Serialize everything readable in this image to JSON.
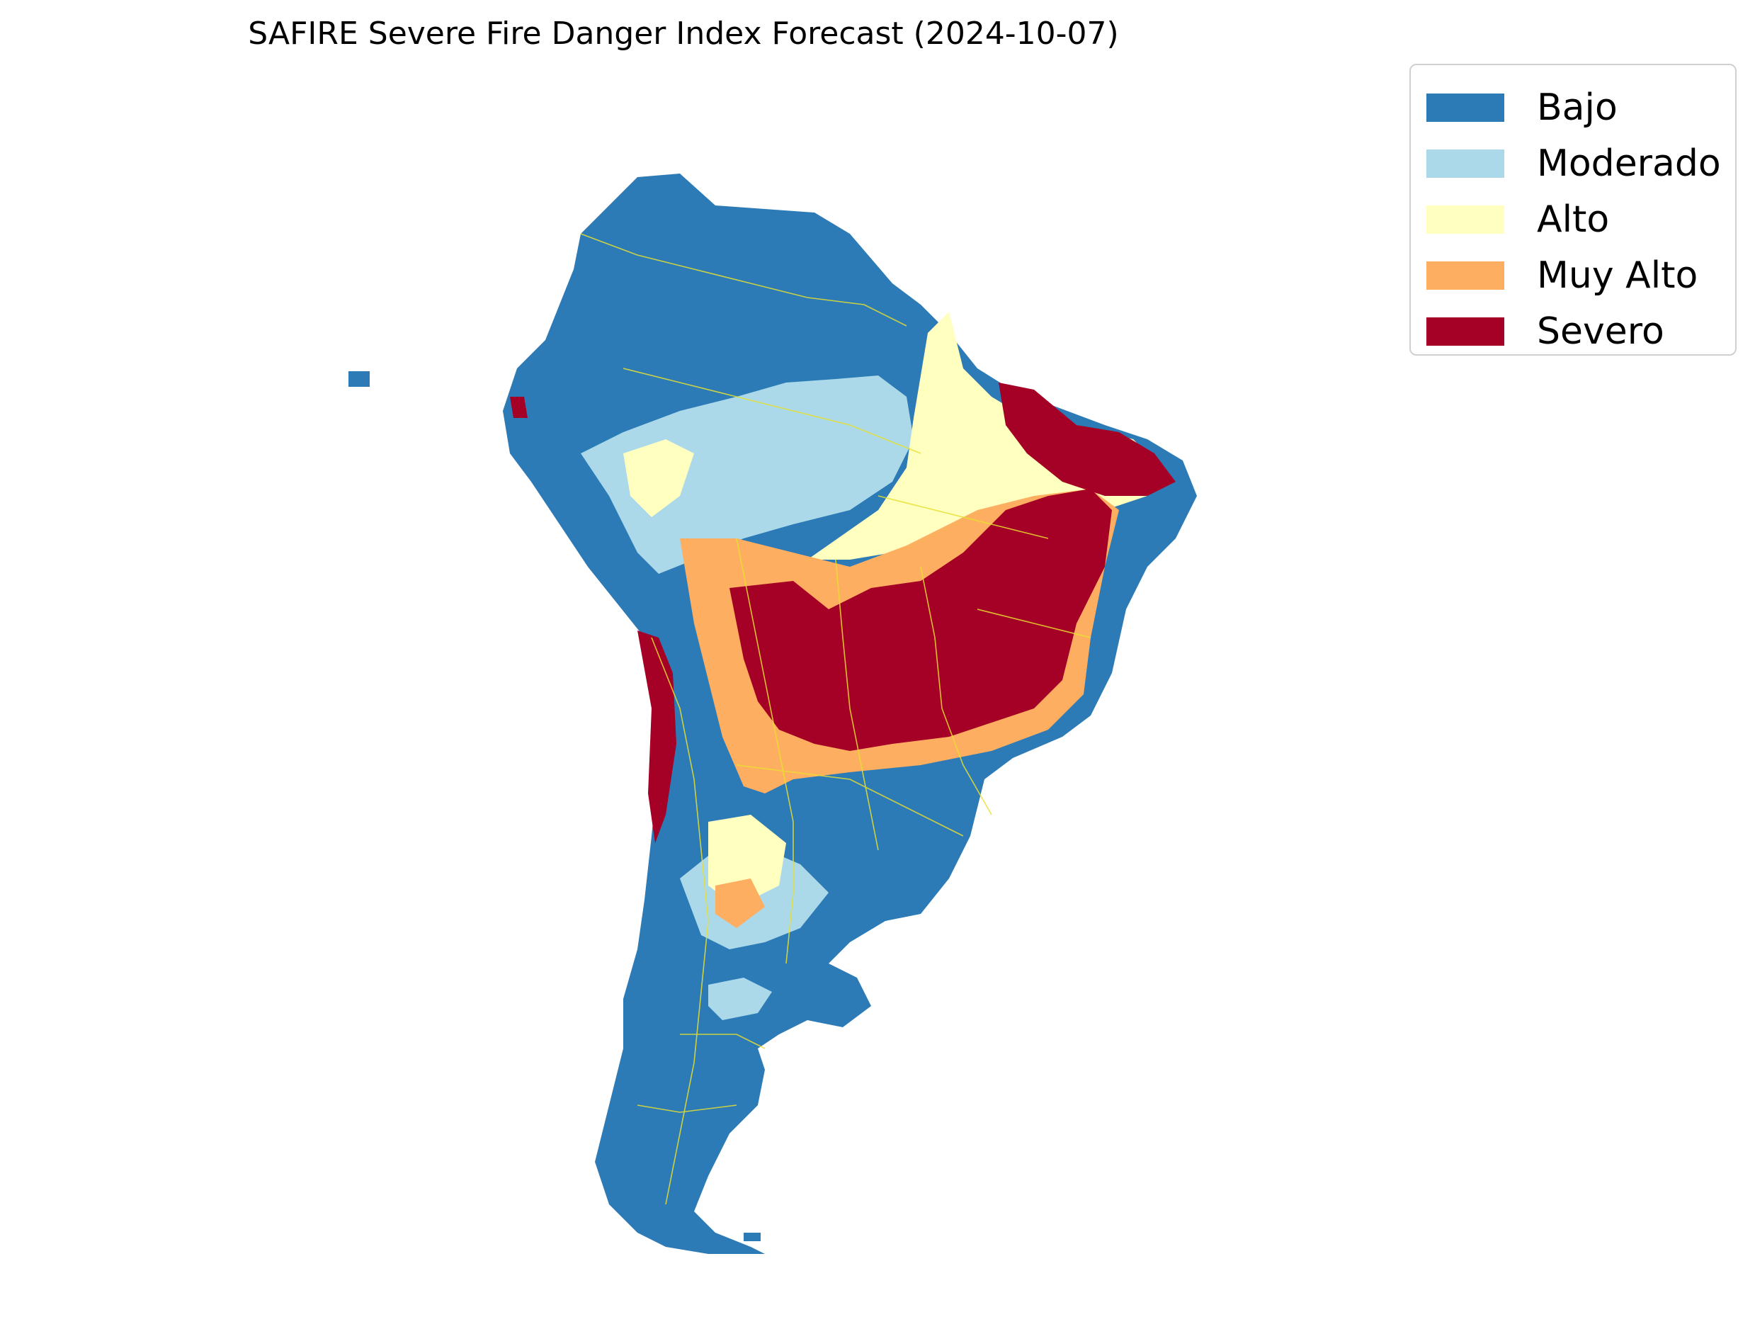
{
  "map": {
    "title": "SAFIRE Severe Fire Danger Index Forecast (2024-10-07)",
    "region": "South America",
    "category_colors": {
      "bajo": "#2c7bb6",
      "moderado": "#abd9e9",
      "alto": "#ffffbf",
      "muy_alto": "#fdae61",
      "severo": "#a50026"
    },
    "border_color": "#e8e030",
    "legend": {
      "placement": "top-right",
      "items": [
        {
          "label": "Bajo",
          "color": "#2c7bb6"
        },
        {
          "label": "Moderado",
          "color": "#abd9e9"
        },
        {
          "label": "Alto",
          "color": "#ffffbf"
        },
        {
          "label": "Muy Alto",
          "color": "#fdae61"
        },
        {
          "label": "Severo",
          "color": "#a50026"
        }
      ]
    }
  }
}
